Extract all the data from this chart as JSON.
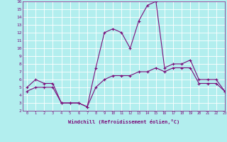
{
  "x_values": [
    0,
    1,
    2,
    3,
    4,
    5,
    6,
    7,
    8,
    9,
    10,
    11,
    12,
    13,
    14,
    15,
    16,
    17,
    18,
    19,
    20,
    21,
    22,
    23
  ],
  "line1_y": [
    5,
    6,
    5.5,
    5.5,
    3,
    3,
    3,
    2.5,
    7.5,
    12,
    12.5,
    12,
    10,
    13.5,
    15.5,
    16,
    7.5,
    8,
    8,
    8.5,
    6,
    6,
    6,
    4.5
  ],
  "line2_y": [
    4.5,
    5,
    5,
    5,
    3,
    3,
    3,
    2.5,
    5,
    6,
    6.5,
    6.5,
    6.5,
    7,
    7,
    7.5,
    7,
    7.5,
    7.5,
    7.5,
    5.5,
    5.5,
    5.5,
    4.5
  ],
  "line_color": "#7b0e7b",
  "bg_color": "#b2eeee",
  "grid_color": "#ffffff",
  "xlabel": "Windchill (Refroidissement éolien,°C)",
  "ylim": [
    2,
    16
  ],
  "xlim": [
    -0.5,
    23
  ],
  "yticks": [
    2,
    3,
    4,
    5,
    6,
    7,
    8,
    9,
    10,
    11,
    12,
    13,
    14,
    15,
    16
  ],
  "xticks": [
    0,
    1,
    2,
    3,
    4,
    5,
    6,
    7,
    8,
    9,
    10,
    11,
    12,
    13,
    14,
    15,
    16,
    17,
    18,
    19,
    20,
    21,
    22,
    23
  ]
}
